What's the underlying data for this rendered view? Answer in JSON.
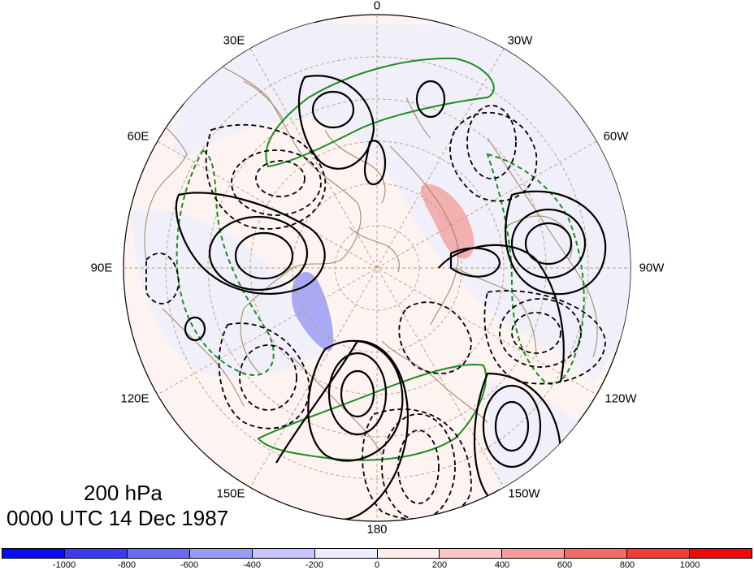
{
  "map": {
    "level_label": "200 hPa",
    "time_label": "0000 UTC 14 Dec 1987",
    "longitude_labels": [
      {
        "id": "lon-0",
        "text": "0"
      },
      {
        "id": "lon-30w",
        "text": "30W"
      },
      {
        "id": "lon-60w",
        "text": "60W"
      },
      {
        "id": "lon-90w",
        "text": "90W"
      },
      {
        "id": "lon-120w",
        "text": "120W"
      },
      {
        "id": "lon-150w",
        "text": "150W"
      },
      {
        "id": "lon-180",
        "text": "180"
      },
      {
        "id": "lon-150e",
        "text": "150E"
      },
      {
        "id": "lon-120e",
        "text": "120E"
      },
      {
        "id": "lon-90e",
        "text": "90E"
      },
      {
        "id": "lon-60e",
        "text": "60E"
      },
      {
        "id": "lon-30e",
        "text": "30E"
      }
    ],
    "colorbar": {
      "colors": [
        "#0a0aef",
        "#3b3bf2",
        "#6a6af5",
        "#9a9af8",
        "#c6c6fb",
        "#ececfd",
        "#fdecec",
        "#fbc6c6",
        "#f89a9a",
        "#f56a6a",
        "#f23b3b",
        "#ef0a0a"
      ],
      "tick_labels": [
        "-1000",
        "-800",
        "-600",
        "-400",
        "-200",
        "0",
        "200",
        "400",
        "600",
        "800",
        "1000"
      ]
    },
    "colors": {
      "coastline": "#a58a6c",
      "graticule": "#a58a6c",
      "positive_anomaly": "#f3a2a2",
      "negative_anomaly": "#9d9df2",
      "jet_contour": "#1e8c1e",
      "field_contour": "#000000"
    }
  }
}
